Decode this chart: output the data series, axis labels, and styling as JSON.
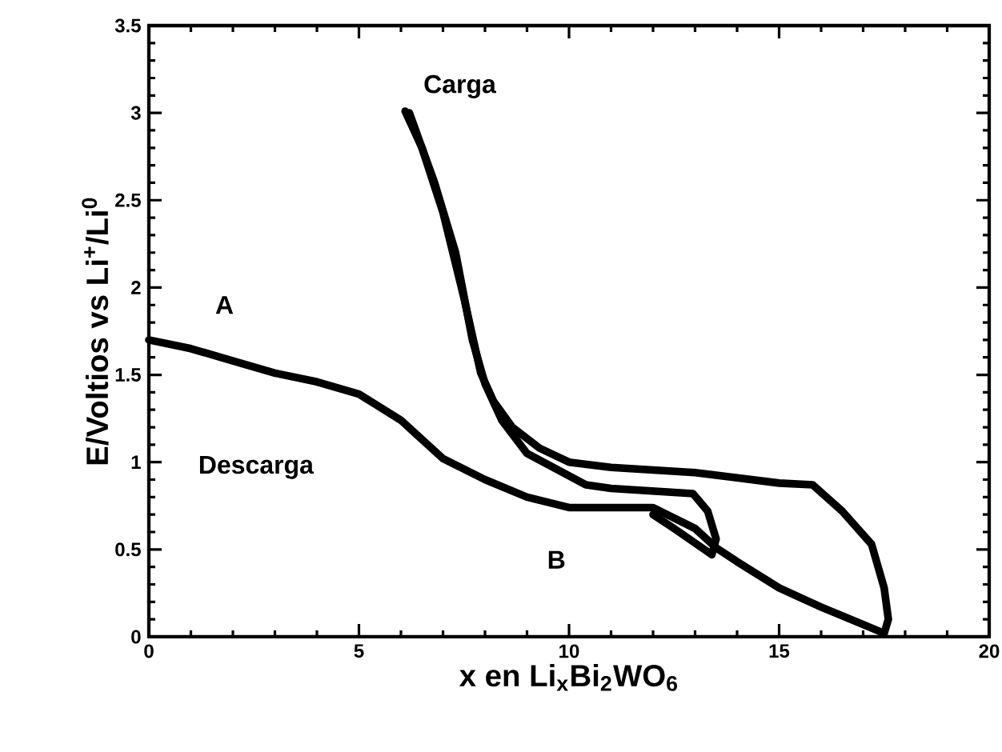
{
  "chart_data": {
    "type": "line",
    "xlabel": "x en Li$_{x}$Bi$_{2}$WO$_{6}$",
    "ylabel": "E/Voltios vs Li$^{+}$/Li$^{0}$",
    "xlim": [
      0,
      20
    ],
    "ylim": [
      0,
      3.5
    ],
    "xticks": [
      0,
      5,
      10,
      15,
      20
    ],
    "yticks": [
      0,
      {
        "value": 0.5,
        "label": "0.5"
      },
      1,
      {
        "value": 1.5,
        "label": "1.5"
      },
      2,
      {
        "value": 2.5,
        "label": "2.5"
      },
      3,
      {
        "value": 3.5,
        "label": "3.5"
      }
    ],
    "grid": false,
    "marker": "none",
    "line_style": "solid",
    "series": [
      {
        "color": "#000000",
        "x": [
          0,
          1,
          2,
          3,
          4,
          5,
          6,
          7,
          8,
          9,
          10,
          12,
          13,
          13.5,
          14,
          15,
          16,
          17,
          17.5,
          17.6,
          17.5,
          17.2,
          16.5,
          15.8,
          15,
          14,
          13,
          11,
          10,
          9.3,
          8.65,
          8.2,
          7.9,
          7.5,
          7.0,
          6.5,
          6.1
        ],
        "values": [
          1.7,
          1.65,
          1.58,
          1.51,
          1.46,
          1.39,
          1.24,
          1.02,
          0.9,
          0.8,
          0.74,
          0.74,
          0.62,
          0.51,
          0.43,
          0.28,
          0.17,
          0.07,
          0.02,
          0.1,
          0.28,
          0.53,
          0.72,
          0.87,
          0.88,
          0.91,
          0.94,
          0.97,
          1.0,
          1.08,
          1.2,
          1.35,
          1.51,
          1.94,
          2.43,
          2.8,
          3.01
        ]
      },
      {
        "color": "#000000",
        "x": [
          6.2,
          6.8,
          7.3,
          7.7,
          8.0,
          8.4,
          9.0,
          10.4,
          11,
          12.95,
          13.3,
          13.5,
          13.4,
          12.5,
          12
        ],
        "values": [
          3.0,
          2.6,
          2.2,
          1.7,
          1.45,
          1.24,
          1.05,
          0.87,
          0.85,
          0.82,
          0.72,
          0.56,
          0.47,
          0.62,
          0.7
        ]
      }
    ],
    "annotations": [
      "A",
      "Carga",
      "Descarga",
      "B"
    ]
  }
}
